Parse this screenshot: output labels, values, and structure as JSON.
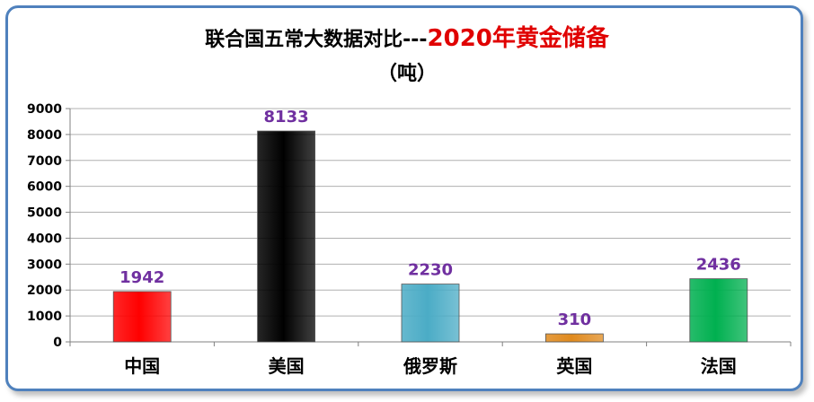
{
  "chart_data": {
    "type": "bar",
    "title": "联合国五常大数据对比---",
    "title_highlight": "2020年黄金储备",
    "subtitle": "（吨）",
    "categories": [
      "中国",
      "美国",
      "俄罗斯",
      "英国",
      "法国"
    ],
    "values": [
      1942,
      8133,
      2230,
      310,
      2436
    ],
    "bar_colors": [
      "#ff0000",
      "#000000",
      "#4bacc6",
      "#e08a1e",
      "#00b050"
    ],
    "value_label_color": "#7030a0",
    "ylim": [
      0,
      9000
    ],
    "yticks": [
      "0",
      "1000",
      "2000",
      "3000",
      "4000",
      "5000",
      "6000",
      "7000",
      "8000",
      "9000"
    ],
    "grid": true,
    "legend": "none"
  }
}
